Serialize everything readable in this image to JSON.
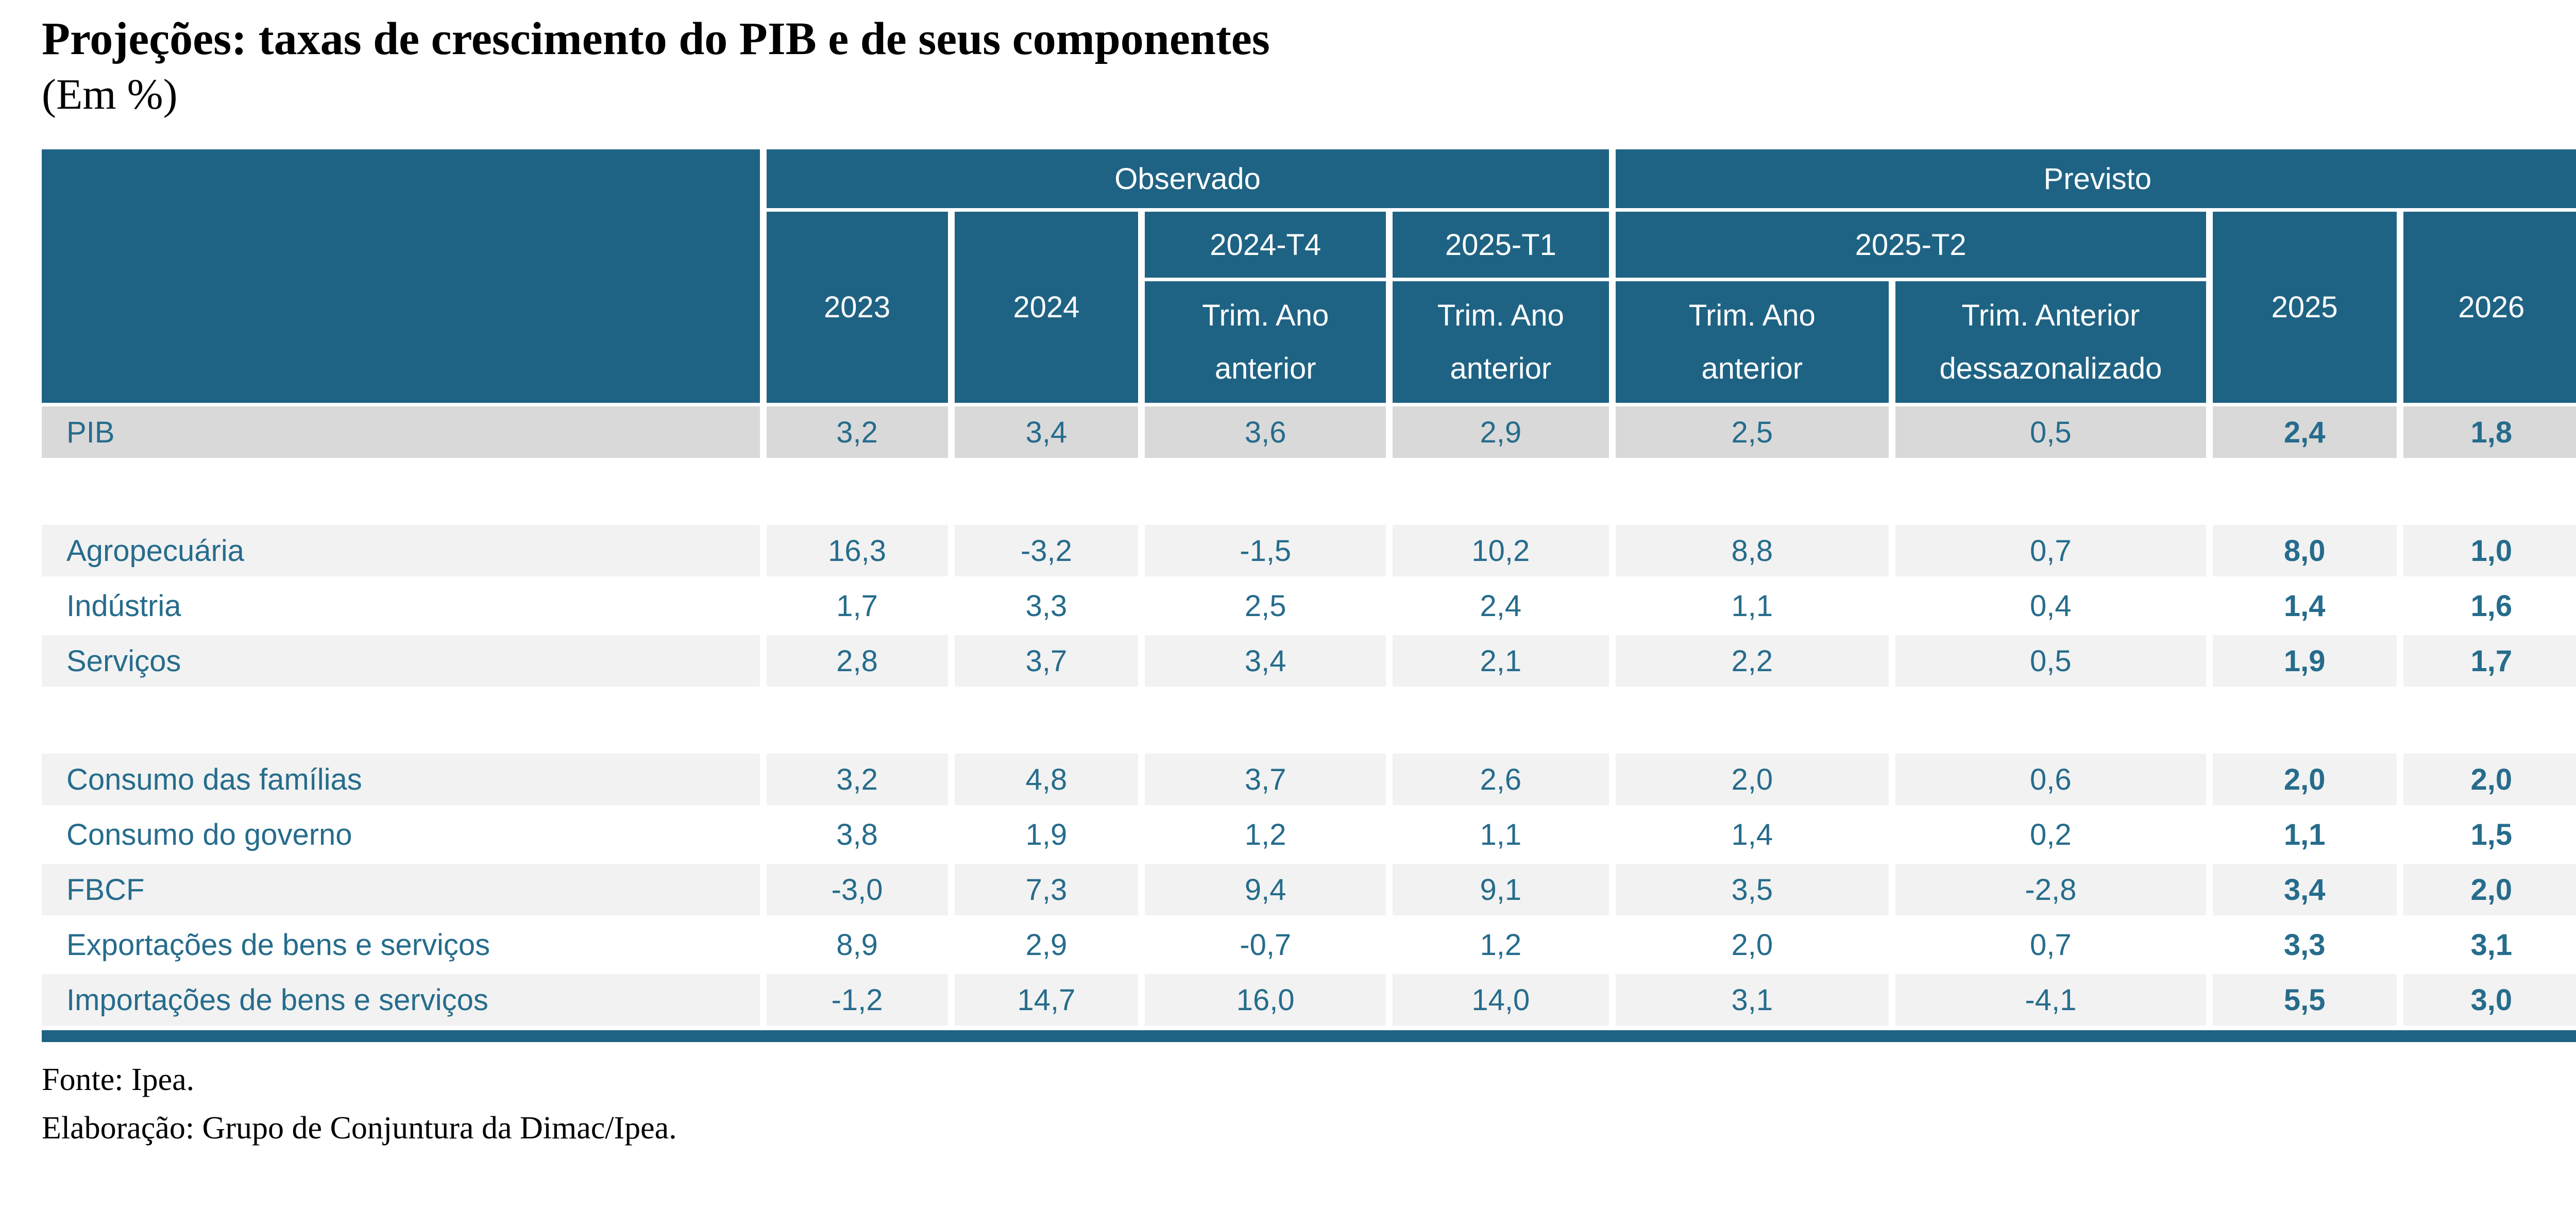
{
  "page": {
    "title": "Projeções: taxas de crescimento do PIB e de seus componentes",
    "subtitle": "(Em %)"
  },
  "colors": {
    "header_bg": "#1F6384",
    "text_teal": "#266C8C",
    "row_pib_bg": "#D9D9D9",
    "row_striped_bg": "#F2F2F2",
    "bottom_bar": "#1F6384"
  },
  "table": {
    "groups": {
      "observado": "Observado",
      "previsto": "Previsto"
    },
    "columns": {
      "y2023": "2023",
      "y2024": "2024",
      "q2024t4": "2024-T4",
      "q2025t1": "2025-T1",
      "q2025t2": "2025-T2",
      "trim_ano_anterior": "Trim. Ano anterior",
      "trim_anterior_dessaz": "Trim. Anterior dessazonalizado",
      "y2025": "2025",
      "y2026": "2026"
    },
    "rows": [
      {
        "label": "PIB",
        "values": [
          "3,2",
          "3,4",
          "3,6",
          "2,9",
          "2,5",
          "0,5",
          "2,4",
          "1,8"
        ],
        "variant": "pib"
      },
      {
        "variant": "spacer"
      },
      {
        "label": "Agropecuária",
        "values": [
          "16,3",
          "-3,2",
          "-1,5",
          "10,2",
          "8,8",
          "0,7",
          "8,0",
          "1,0"
        ],
        "variant": "striped"
      },
      {
        "label": "Indústria",
        "values": [
          "1,7",
          "3,3",
          "2,5",
          "2,4",
          "1,1",
          "0,4",
          "1,4",
          "1,6"
        ],
        "variant": "plain"
      },
      {
        "label": "Serviços",
        "values": [
          "2,8",
          "3,7",
          "3,4",
          "2,1",
          "2,2",
          "0,5",
          "1,9",
          "1,7"
        ],
        "variant": "striped"
      },
      {
        "variant": "spacer"
      },
      {
        "label": "Consumo das famílias",
        "values": [
          "3,2",
          "4,8",
          "3,7",
          "2,6",
          "2,0",
          "0,6",
          "2,0",
          "2,0"
        ],
        "variant": "striped"
      },
      {
        "label": "Consumo do governo",
        "values": [
          "3,8",
          "1,9",
          "1,2",
          "1,1",
          "1,4",
          "0,2",
          "1,1",
          "1,5"
        ],
        "variant": "plain"
      },
      {
        "label": "FBCF",
        "values": [
          "-3,0",
          "7,3",
          "9,4",
          "9,1",
          "3,5",
          "-2,8",
          "3,4",
          "2,0"
        ],
        "variant": "striped"
      },
      {
        "label": "Exportações de bens e serviços",
        "values": [
          "8,9",
          "2,9",
          "-0,7",
          "1,2",
          "2,0",
          "0,7",
          "3,3",
          "3,1"
        ],
        "variant": "plain"
      },
      {
        "label": "Importações de bens e serviços",
        "values": [
          "-1,2",
          "14,7",
          "16,0",
          "14,0",
          "3,1",
          "-4,1",
          "5,5",
          "3,0"
        ],
        "variant": "striped"
      }
    ]
  },
  "footer": {
    "fonte": "Fonte: Ipea.",
    "elaboracao": "Elaboração: Grupo de Conjuntura da Dimac/Ipea."
  }
}
